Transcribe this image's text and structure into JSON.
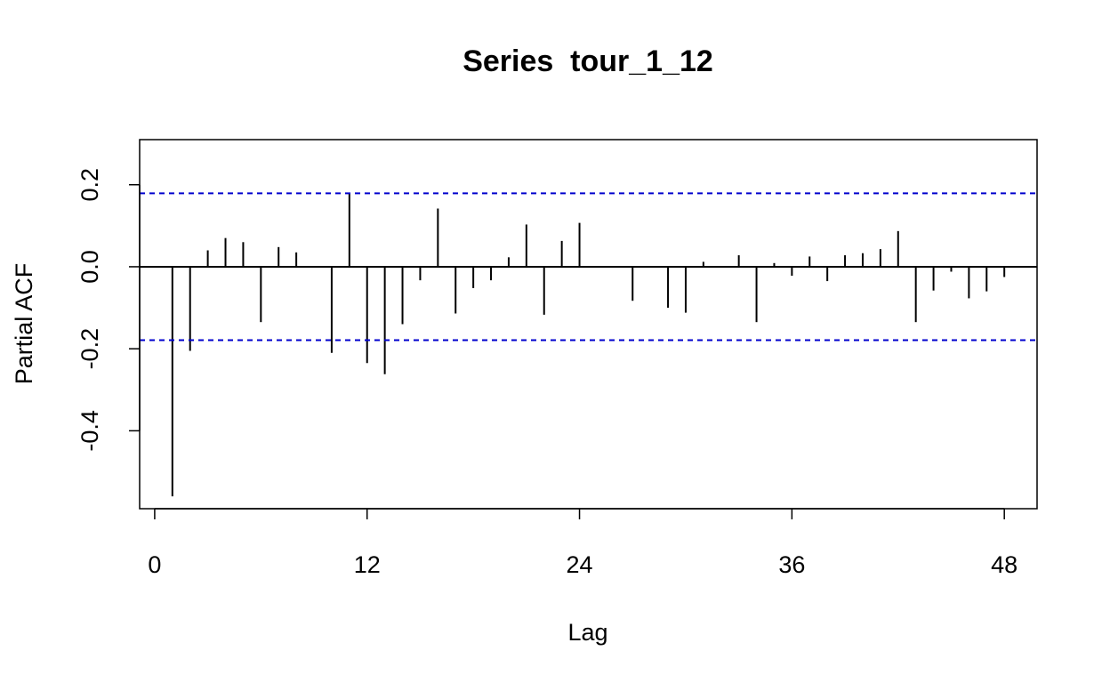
{
  "chart_data": {
    "type": "bar",
    "title": "Series  tour_1_12",
    "xlabel": "Lag",
    "ylabel": "Partial ACF",
    "xlim": [
      -0.85,
      49.85
    ],
    "ylim": [
      -0.59,
      0.31
    ],
    "x_ticks": [
      0,
      12,
      24,
      36,
      48
    ],
    "y_ticks": [
      -0.4,
      -0.2,
      0.0,
      0.2
    ],
    "y_tick_labels": [
      "-0.4",
      "-0.2",
      "0.0",
      "0.2"
    ],
    "confidence_limit": 0.179,
    "confidence_color": "#0000CD",
    "grid": false,
    "legend": "none",
    "lags": [
      1,
      2,
      3,
      4,
      5,
      6,
      7,
      8,
      9,
      10,
      11,
      12,
      13,
      14,
      15,
      16,
      17,
      18,
      19,
      20,
      21,
      22,
      23,
      24,
      25,
      26,
      27,
      28,
      29,
      30,
      31,
      32,
      33,
      34,
      35,
      36,
      37,
      38,
      39,
      40,
      41,
      42,
      43,
      44,
      45,
      46,
      47,
      48
    ],
    "values": [
      -0.56,
      -0.205,
      0.04,
      0.07,
      0.06,
      -0.135,
      0.048,
      0.035,
      0.0,
      -0.21,
      0.18,
      -0.235,
      -0.262,
      -0.14,
      -0.033,
      0.142,
      -0.114,
      -0.052,
      -0.033,
      0.023,
      0.103,
      -0.117,
      0.063,
      0.107,
      0.0,
      0.0,
      -0.083,
      0.0,
      -0.1,
      -0.112,
      0.012,
      0.0,
      0.028,
      -0.135,
      0.009,
      -0.022,
      0.025,
      -0.035,
      0.028,
      0.033,
      0.043,
      0.087,
      -0.135,
      -0.058,
      -0.012,
      -0.077,
      -0.06,
      -0.025
    ]
  }
}
